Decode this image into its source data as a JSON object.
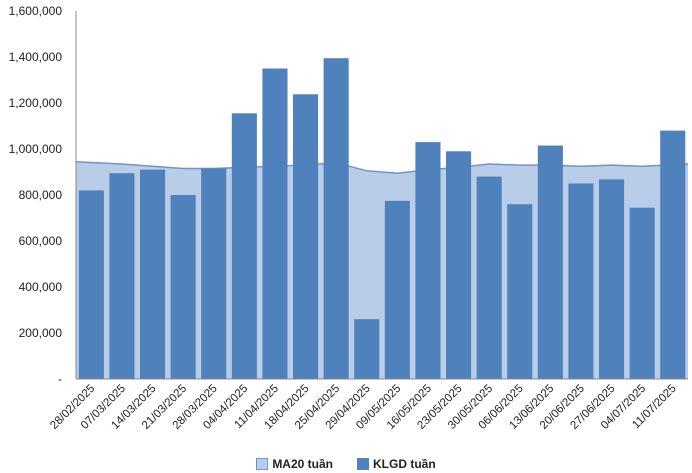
{
  "chart_data": {
    "type": "bar",
    "categories": [
      "28/02/2025",
      "07/03/2025",
      "14/03/2025",
      "21/03/2025",
      "28/03/2025",
      "04/04/2025",
      "11/04/2025",
      "18/04/2025",
      "25/04/2025",
      "29/04/2025",
      "09/05/2025",
      "16/05/2025",
      "23/05/2025",
      "30/05/2025",
      "06/06/2025",
      "13/06/2025",
      "20/06/2025",
      "27/06/2025",
      "04/07/2025",
      "11/07/2025"
    ],
    "series": [
      {
        "name": "MA20 tuần",
        "type": "area",
        "color": "#b9cde8",
        "line_color": "#6f95c9",
        "values": [
          945000,
          935000,
          925000,
          915000,
          915000,
          920000,
          925000,
          930000,
          940000,
          905000,
          895000,
          910000,
          920000,
          935000,
          930000,
          930000,
          925000,
          930000,
          925000,
          935000
        ]
      },
      {
        "name": "KLGD tuần",
        "type": "bar",
        "color": "#4f81bd",
        "values": [
          820000,
          895000,
          910000,
          800000,
          915000,
          1155000,
          1350000,
          1238000,
          1395000,
          260000,
          775000,
          1030000,
          990000,
          880000,
          760000,
          1015000,
          850000,
          868000,
          745000,
          1080000
        ]
      }
    ],
    "y_ticks": [
      "-",
      "200,000",
      "400,000",
      "600,000",
      "800,000",
      "1,000,000",
      "1,200,000",
      "1,400,000",
      "1,600,000"
    ],
    "ylim": [
      0,
      1600000
    ],
    "grid": false,
    "legend_position": "bottom"
  }
}
